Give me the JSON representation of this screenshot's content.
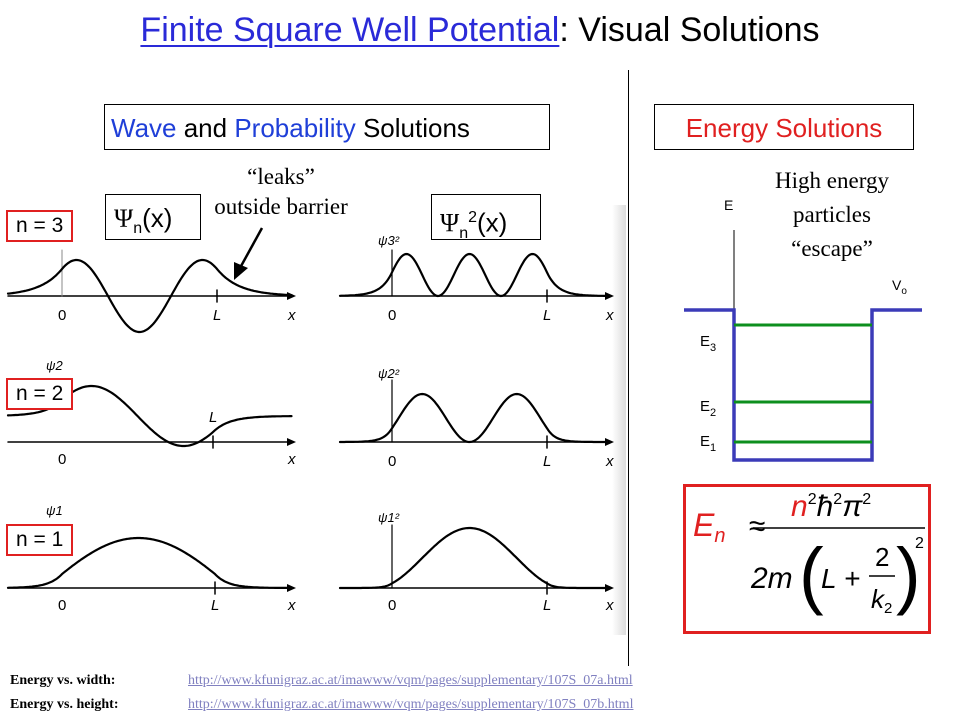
{
  "title": {
    "link_text": "Finite Square Well Potential",
    "rest": ": Visual Solutions"
  },
  "headers": {
    "wave": {
      "word1": "Wave",
      "and": " and ",
      "word2": "Probability",
      "rest": " Solutions"
    },
    "energy": "Energy Solutions"
  },
  "psi_labels": {
    "psi": "Ψ",
    "sub": "n",
    "arg": "(x)",
    "sq": "2"
  },
  "annotations": {
    "leaks_line1": "“leaks”",
    "leaks_line2": "outside barrier",
    "escape_line1": "High energy",
    "escape_line2": "particles",
    "escape_line3": "“escape”"
  },
  "states": [
    {
      "label": "n = 3",
      "psi_ylabel": "ψ3",
      "prob_ylabel": "ψ3²"
    },
    {
      "label": "n = 2",
      "psi_ylabel": "ψ2",
      "prob_ylabel": "ψ2²"
    },
    {
      "label": "n = 1",
      "psi_ylabel": "ψ1",
      "prob_ylabel": "ψ1²"
    }
  ],
  "axis_labels": {
    "zero": "0",
    "L": "L",
    "x": "x"
  },
  "energy_diagram": {
    "axis_label": "E",
    "v0_main": "V",
    "v0_sub": "o",
    "levels": [
      {
        "main": "E",
        "sub": "3"
      },
      {
        "main": "E",
        "sub": "2"
      },
      {
        "main": "E",
        "sub": "1"
      }
    ],
    "colors": {
      "well": "#3b3bb8",
      "levels": "#0d8f1e"
    }
  },
  "formula": {
    "lhs": "E",
    "lhs_sub": "n",
    "approx": "≈",
    "num_n": "n",
    "num_hbar": "ħ",
    "num_pi": "π",
    "exp": "2",
    "den_prefix": "2m",
    "den_L": "L +",
    "frac_num": "2",
    "frac_den": "k",
    "frac_den_sub": "2",
    "den_exp": "2",
    "colors": {
      "border": "#e02020",
      "highlight": "#e02020"
    }
  },
  "footer": [
    {
      "label": "Energy vs. width:",
      "url": "http://www.kfunigraz.ac.at/imawww/vqm/pages/supplementary/107S_07a.html"
    },
    {
      "label": "Energy vs. height:",
      "url": "http://www.kfunigraz.ac.at/imawww/vqm/pages/supplementary/107S_07b.html"
    }
  ]
}
